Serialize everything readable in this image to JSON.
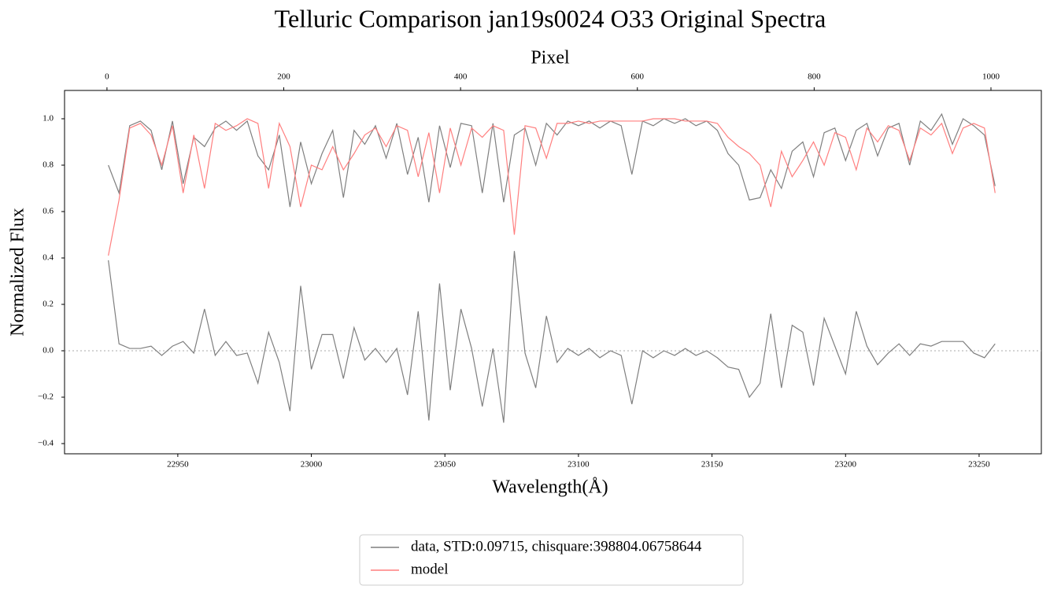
{
  "chart_data": {
    "type": "line",
    "title": "Telluric Comparison jan19s0024 O33 Original Spectra",
    "xlabel": "Wavelength(Å)",
    "ylabel": "Normalized Flux",
    "x2label": "Pixel",
    "xlim": [
      22907.6,
      23273.3
    ],
    "xticks": [
      22950,
      23000,
      23050,
      23100,
      23150,
      23200,
      23250
    ],
    "x2lim": [
      -48,
      1057
    ],
    "x2ticks": [
      0,
      200,
      400,
      600,
      800,
      1000
    ],
    "ylim": [
      -0.444,
      1.122
    ],
    "yticks": [
      {
        "value": -0.4,
        "label": "−0.4"
      },
      {
        "value": -0.2,
        "label": "−0.2"
      },
      {
        "value": 0,
        "label": "0.0"
      },
      0.2,
      0.4,
      0.6,
      0.8,
      {
        "value": 1,
        "label": "1.0"
      }
    ],
    "hline": 0,
    "grid": false,
    "legend": "lower center",
    "x": [
      22924,
      22928,
      22932,
      22936,
      22940,
      22944,
      22948,
      22952,
      22956,
      22960,
      22964,
      22968,
      22972,
      22976,
      22980,
      22984,
      22988,
      22992,
      22996,
      23000,
      23004,
      23008,
      23012,
      23016,
      23020,
      23024,
      23028,
      23032,
      23036,
      23040,
      23044,
      23048,
      23052,
      23056,
      23060,
      23064,
      23068,
      23072,
      23076,
      23080,
      23084,
      23088,
      23092,
      23096,
      23100,
      23104,
      23108,
      23112,
      23116,
      23120,
      23124,
      23128,
      23132,
      23136,
      23140,
      23144,
      23148,
      23152,
      23156,
      23160,
      23164,
      23168,
      23172,
      23176,
      23180,
      23184,
      23188,
      23192,
      23196,
      23200,
      23204,
      23208,
      23212,
      23216,
      23220,
      23224,
      23228,
      23232,
      23236,
      23240,
      23244,
      23248,
      23252,
      23256
    ],
    "series": [
      {
        "name": "data, STD:0.09715, chisquare:398804.06758644",
        "color": "#7f7f7f",
        "values": [
          0.8,
          0.68,
          0.97,
          0.99,
          0.95,
          0.78,
          0.99,
          0.72,
          0.92,
          0.88,
          0.96,
          0.99,
          0.95,
          0.99,
          0.84,
          0.78,
          0.93,
          0.62,
          0.9,
          0.72,
          0.85,
          0.95,
          0.66,
          0.95,
          0.89,
          0.97,
          0.83,
          0.98,
          0.76,
          0.92,
          0.64,
          0.97,
          0.79,
          0.98,
          0.97,
          0.68,
          0.98,
          0.64,
          0.93,
          0.96,
          0.8,
          0.98,
          0.93,
          0.99,
          0.97,
          0.99,
          0.96,
          0.99,
          0.97,
          0.76,
          0.99,
          0.97,
          1.0,
          0.98,
          1.0,
          0.97,
          0.99,
          0.95,
          0.85,
          0.8,
          0.65,
          0.66,
          0.78,
          0.7,
          0.86,
          0.9,
          0.75,
          0.94,
          0.96,
          0.82,
          0.95,
          0.98,
          0.84,
          0.96,
          0.98,
          0.8,
          0.99,
          0.95,
          1.02,
          0.89,
          1.0,
          0.97,
          0.93,
          0.71
        ]
      },
      {
        "name": "model",
        "color": "#ff7f7f",
        "values": [
          0.41,
          0.65,
          0.96,
          0.98,
          0.93,
          0.8,
          0.97,
          0.68,
          0.93,
          0.7,
          0.98,
          0.95,
          0.97,
          1.0,
          0.98,
          0.7,
          0.98,
          0.88,
          0.62,
          0.8,
          0.78,
          0.88,
          0.78,
          0.85,
          0.93,
          0.96,
          0.88,
          0.97,
          0.95,
          0.75,
          0.94,
          0.68,
          0.96,
          0.8,
          0.96,
          0.92,
          0.97,
          0.95,
          0.5,
          0.97,
          0.96,
          0.83,
          0.98,
          0.98,
          0.99,
          0.98,
          0.99,
          0.99,
          0.99,
          0.99,
          0.99,
          1.0,
          1.0,
          1.0,
          0.99,
          0.99,
          0.99,
          0.98,
          0.92,
          0.88,
          0.85,
          0.8,
          0.62,
          0.86,
          0.75,
          0.82,
          0.9,
          0.8,
          0.94,
          0.92,
          0.78,
          0.96,
          0.9,
          0.97,
          0.95,
          0.82,
          0.96,
          0.93,
          0.98,
          0.85,
          0.96,
          0.98,
          0.96,
          0.68
        ]
      },
      {
        "color": "#7f7f7f",
        "values": [
          0.39,
          0.03,
          0.01,
          0.01,
          0.02,
          -0.02,
          0.02,
          0.04,
          -0.01,
          0.18,
          -0.02,
          0.04,
          -0.02,
          -0.01,
          -0.14,
          0.08,
          -0.05,
          -0.26,
          0.28,
          -0.08,
          0.07,
          0.07,
          -0.12,
          0.1,
          -0.04,
          0.01,
          -0.05,
          0.01,
          -0.19,
          0.17,
          -0.3,
          0.29,
          -0.17,
          0.18,
          0.01,
          -0.24,
          0.01,
          -0.31,
          0.43,
          -0.01,
          -0.16,
          0.15,
          -0.05,
          0.01,
          -0.02,
          0.01,
          -0.03,
          0.0,
          -0.02,
          -0.23,
          0.0,
          -0.03,
          0.0,
          -0.02,
          0.01,
          -0.02,
          0.0,
          -0.03,
          -0.07,
          -0.08,
          -0.2,
          -0.14,
          0.16,
          -0.16,
          0.11,
          0.08,
          -0.15,
          0.14,
          0.02,
          -0.1,
          0.17,
          0.02,
          -0.06,
          -0.01,
          0.03,
          -0.02,
          0.03,
          0.02,
          0.04,
          0.04,
          0.04,
          -0.01,
          -0.03,
          0.03
        ]
      }
    ]
  }
}
